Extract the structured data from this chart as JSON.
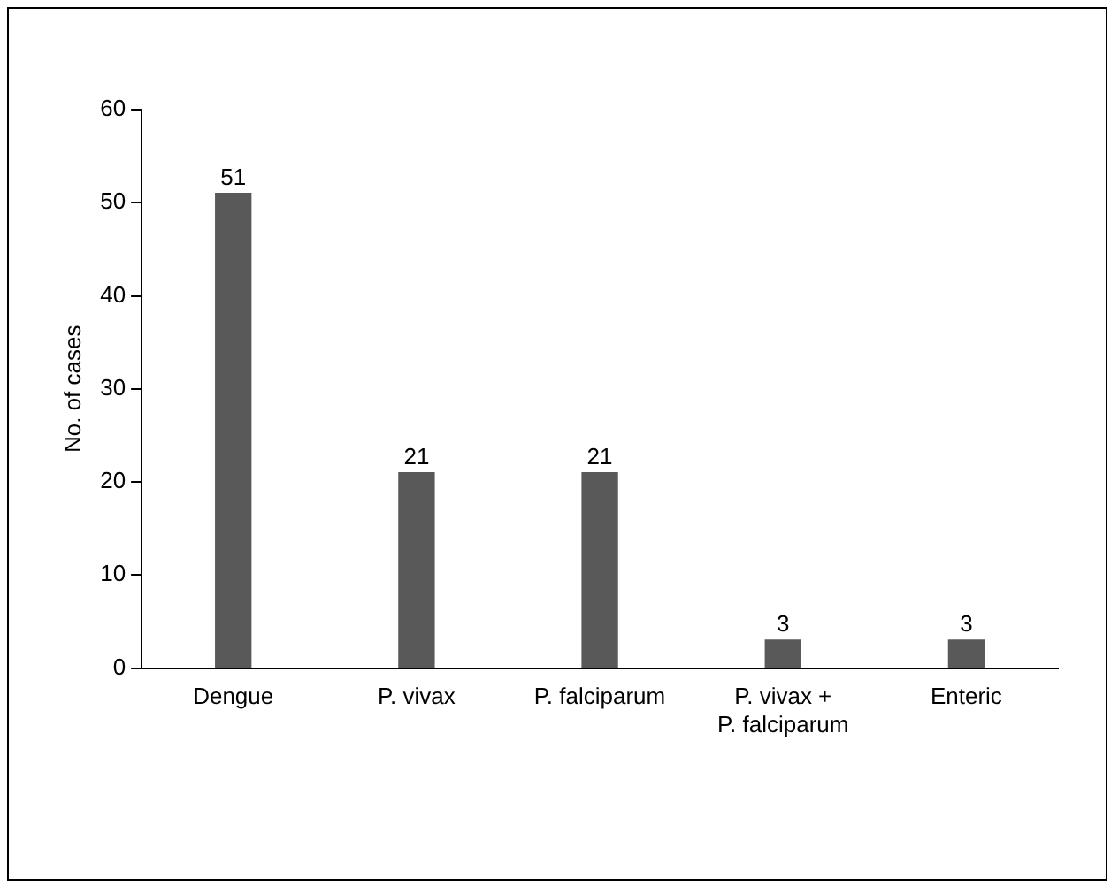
{
  "chart_data": {
    "type": "bar",
    "ylabel": "No. of cases",
    "categories": [
      "Dengue",
      "P. vivax",
      "P. falciparum",
      "P. vivax +\nP. falciparum",
      "Enteric"
    ],
    "values": [
      51,
      21,
      21,
      3,
      3
    ],
    "color": "#595959",
    "ylim": [
      0,
      60
    ],
    "yticks": [
      0,
      10,
      20,
      30,
      40,
      50,
      60
    ],
    "grid": false,
    "data_labels": true
  }
}
